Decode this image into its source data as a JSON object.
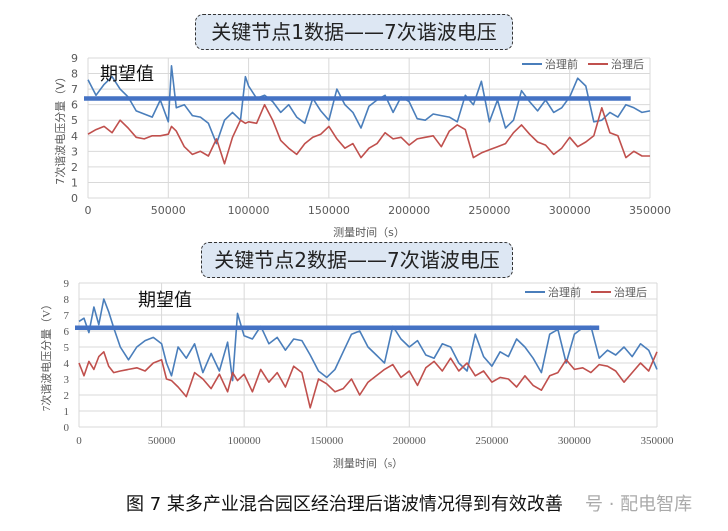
{
  "chart_data": [
    {
      "type": "line",
      "title": "关键节点1数据——7次谐波电压",
      "xlabel": "测量时间（s）",
      "ylabel": "7次谐波电压分量（V）",
      "xlim": [
        0,
        350000
      ],
      "ylim": [
        0,
        9
      ],
      "x_ticks": [
        "0",
        "50000",
        "100000",
        "150000",
        "200000",
        "250000",
        "300000",
        "350000"
      ],
      "y_ticks": [
        "0",
        "1",
        "2",
        "3",
        "4",
        "5",
        "6",
        "7",
        "8",
        "9"
      ],
      "grid": true,
      "legend_position": "top-right",
      "annotation": {
        "text": "期望值",
        "value": 6.4,
        "x_end": 338000
      },
      "series": [
        {
          "name": "治理前",
          "color": "#4a7ebb",
          "x": [
            0,
            5000,
            10000,
            15000,
            20000,
            25000,
            30000,
            35000,
            40000,
            45000,
            50000,
            52000,
            55000,
            60000,
            65000,
            70000,
            75000,
            80000,
            85000,
            90000,
            95000,
            98000,
            100000,
            105000,
            110000,
            115000,
            120000,
            125000,
            130000,
            135000,
            140000,
            145000,
            150000,
            155000,
            160000,
            165000,
            170000,
            175000,
            180000,
            185000,
            190000,
            195000,
            200000,
            205000,
            210000,
            215000,
            220000,
            225000,
            230000,
            235000,
            240000,
            245000,
            250000,
            255000,
            260000,
            265000,
            270000,
            275000,
            280000,
            285000,
            290000,
            295000,
            300000,
            305000,
            310000,
            315000,
            320000,
            325000,
            330000,
            335000,
            340000,
            345000,
            350000
          ],
          "values": [
            7.6,
            6.6,
            7.3,
            7.8,
            7.0,
            6.5,
            5.6,
            5.4,
            5.2,
            6.3,
            4.9,
            8.5,
            5.8,
            6.0,
            5.3,
            5.2,
            4.8,
            3.5,
            5.0,
            5.5,
            5.0,
            7.8,
            7.2,
            6.4,
            6.6,
            6.2,
            5.5,
            6.0,
            5.2,
            4.8,
            6.4,
            5.6,
            5.0,
            7.0,
            6.0,
            5.5,
            4.5,
            5.9,
            6.3,
            6.6,
            5.5,
            6.5,
            6.2,
            5.1,
            5.0,
            5.4,
            5.3,
            5.2,
            4.9,
            6.6,
            6.0,
            7.5,
            4.9,
            6.3,
            4.5,
            5.0,
            6.9,
            6.2,
            5.6,
            6.3,
            5.5,
            5.8,
            6.5,
            7.7,
            7.2,
            4.9,
            5.0,
            5.5,
            5.2,
            6.0,
            5.8,
            5.5,
            5.6
          ]
        },
        {
          "name": "治理后",
          "color": "#c0504d",
          "x": [
            0,
            5000,
            10000,
            15000,
            20000,
            25000,
            30000,
            35000,
            40000,
            45000,
            50000,
            52000,
            55000,
            60000,
            65000,
            70000,
            75000,
            80000,
            85000,
            90000,
            95000,
            98000,
            100000,
            105000,
            110000,
            115000,
            120000,
            125000,
            130000,
            135000,
            140000,
            145000,
            150000,
            155000,
            160000,
            165000,
            170000,
            175000,
            180000,
            185000,
            190000,
            195000,
            200000,
            205000,
            210000,
            215000,
            220000,
            225000,
            230000,
            235000,
            240000,
            245000,
            250000,
            255000,
            260000,
            265000,
            270000,
            275000,
            280000,
            285000,
            290000,
            295000,
            300000,
            305000,
            310000,
            315000,
            320000,
            325000,
            330000,
            335000,
            340000,
            345000,
            350000
          ],
          "values": [
            4.1,
            4.4,
            4.6,
            4.2,
            5.0,
            4.5,
            3.9,
            3.8,
            4.0,
            4.0,
            4.1,
            4.6,
            4.3,
            3.3,
            2.8,
            3.0,
            2.7,
            3.8,
            2.2,
            3.9,
            5.0,
            4.8,
            4.9,
            4.8,
            6.0,
            5.0,
            3.7,
            3.2,
            2.8,
            3.5,
            3.9,
            4.1,
            4.6,
            3.8,
            3.2,
            3.5,
            2.6,
            3.2,
            3.5,
            4.2,
            3.8,
            3.9,
            3.4,
            3.8,
            3.9,
            4.0,
            3.3,
            4.3,
            4.7,
            4.4,
            2.6,
            2.9,
            3.1,
            3.3,
            3.5,
            4.2,
            4.7,
            4.1,
            3.6,
            3.4,
            2.8,
            3.2,
            3.9,
            3.3,
            3.6,
            4.0,
            5.8,
            4.2,
            4.0,
            2.6,
            3.0,
            2.7,
            2.7
          ]
        }
      ]
    },
    {
      "type": "line",
      "title": "关键节点2数据——7次谐波电压",
      "xlabel": "测量时间（s）",
      "ylabel": "7次谐波电压分量（V）",
      "xlim": [
        0,
        350000
      ],
      "ylim": [
        0,
        9
      ],
      "x_ticks": [
        "0",
        "50000",
        "100000",
        "150000",
        "200000",
        "250000",
        "300000",
        "350000"
      ],
      "y_ticks": [
        "0",
        "1",
        "2",
        "3",
        "4",
        "5",
        "6",
        "7",
        "8",
        "9"
      ],
      "grid": true,
      "legend_position": "top-right",
      "annotation": {
        "text": "期望值",
        "value": 6.2,
        "x_end": 315000
      },
      "series": [
        {
          "name": "治理前",
          "color": "#4a7ebb",
          "x": [
            0,
            3000,
            6000,
            9000,
            12000,
            15000,
            18000,
            21000,
            25000,
            30000,
            35000,
            40000,
            45000,
            50000,
            53000,
            56000,
            60000,
            65000,
            70000,
            75000,
            80000,
            85000,
            90000,
            93000,
            96000,
            100000,
            105000,
            110000,
            115000,
            120000,
            125000,
            130000,
            135000,
            140000,
            145000,
            150000,
            155000,
            160000,
            165000,
            170000,
            175000,
            180000,
            185000,
            190000,
            195000,
            200000,
            205000,
            210000,
            215000,
            220000,
            225000,
            230000,
            235000,
            240000,
            245000,
            250000,
            255000,
            260000,
            265000,
            270000,
            275000,
            280000,
            285000,
            290000,
            295000,
            300000,
            305000,
            310000,
            315000,
            320000,
            325000,
            330000,
            335000,
            340000,
            345000,
            350000
          ],
          "values": [
            6.6,
            6.8,
            5.9,
            7.5,
            6.4,
            8.0,
            7.2,
            6.2,
            5.0,
            4.2,
            5.0,
            5.4,
            5.6,
            5.2,
            4.0,
            3.2,
            5.0,
            4.3,
            5.2,
            3.4,
            4.6,
            3.5,
            5.3,
            2.9,
            7.1,
            5.7,
            5.5,
            6.3,
            5.2,
            5.6,
            4.8,
            5.5,
            5.4,
            4.5,
            3.5,
            3.1,
            3.6,
            4.7,
            5.8,
            6.0,
            5.0,
            4.5,
            4.0,
            6.3,
            5.5,
            5.0,
            5.4,
            4.5,
            4.3,
            5.2,
            5.0,
            4.0,
            3.5,
            5.8,
            4.4,
            3.8,
            4.7,
            4.4,
            5.5,
            5.0,
            4.3,
            3.4,
            5.8,
            6.1,
            4.0,
            5.8,
            6.2,
            6.3,
            4.3,
            4.8,
            4.5,
            5.0,
            4.4,
            5.2,
            4.8,
            3.6
          ]
        },
        {
          "name": "治理后",
          "color": "#c0504d",
          "x": [
            0,
            3000,
            6000,
            9000,
            12000,
            15000,
            18000,
            21000,
            25000,
            30000,
            35000,
            40000,
            45000,
            50000,
            53000,
            56000,
            60000,
            65000,
            70000,
            75000,
            80000,
            85000,
            90000,
            93000,
            96000,
            100000,
            105000,
            110000,
            115000,
            120000,
            125000,
            130000,
            135000,
            140000,
            145000,
            150000,
            155000,
            160000,
            165000,
            170000,
            175000,
            180000,
            185000,
            190000,
            195000,
            200000,
            205000,
            210000,
            215000,
            220000,
            225000,
            230000,
            235000,
            240000,
            245000,
            250000,
            255000,
            260000,
            265000,
            270000,
            275000,
            280000,
            285000,
            290000,
            295000,
            300000,
            305000,
            310000,
            315000,
            320000,
            325000,
            330000,
            335000,
            340000,
            345000,
            350000
          ],
          "values": [
            4.0,
            3.2,
            4.1,
            3.6,
            4.4,
            4.7,
            3.8,
            3.4,
            3.5,
            3.6,
            3.7,
            3.5,
            4.0,
            4.2,
            3.0,
            2.9,
            2.5,
            1.9,
            3.4,
            3.0,
            2.4,
            3.3,
            2.2,
            3.4,
            2.9,
            3.3,
            2.2,
            3.6,
            2.8,
            3.4,
            2.5,
            3.8,
            3.4,
            1.2,
            3.0,
            2.7,
            2.2,
            2.4,
            3.0,
            2.0,
            2.8,
            3.2,
            3.6,
            3.9,
            3.1,
            3.5,
            2.6,
            3.7,
            4.1,
            3.5,
            4.3,
            3.5,
            4.0,
            3.2,
            3.5,
            2.8,
            3.1,
            3.0,
            2.5,
            3.2,
            2.6,
            2.3,
            3.2,
            3.4,
            4.2,
            3.6,
            3.7,
            3.4,
            3.9,
            3.8,
            3.5,
            2.8,
            3.4,
            4.0,
            3.5,
            4.7
          ]
        }
      ]
    }
  ],
  "charts": [
    {
      "title": "关键节点1数据——7次谐波电压",
      "annotation": "期望值",
      "xlabel": "测量时间（s）",
      "ylabel": "7次谐波电压分量（V）",
      "legend": [
        "治理前",
        "治理后"
      ]
    },
    {
      "title": "关键节点2数据——7次谐波电压",
      "annotation": "期望值",
      "xlabel": "测量时间（s）",
      "ylabel": "7次谐波电压分量（V）",
      "legend": [
        "治理前",
        "治理后"
      ]
    }
  ],
  "caption": "图 7  某多产业混合园区经治理后谐波情况得到有效改善",
  "watermark": "号 · 配电智库",
  "colors": {
    "before": "#4a7ebb",
    "after": "#c0504d",
    "expectation": "#4472c4",
    "grid": "#d9d9d9",
    "title_bg": "#dde7f3"
  }
}
